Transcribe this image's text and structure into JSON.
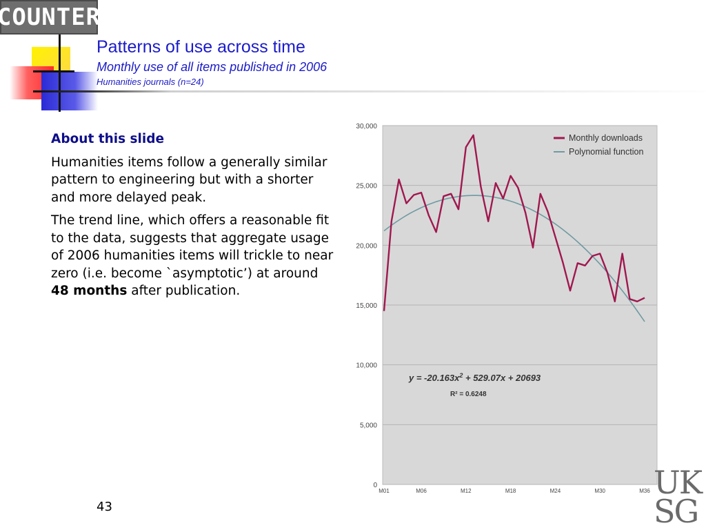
{
  "header": {
    "logo_text": "COUNTER",
    "title": "Patterns of use across time",
    "subtitle": "Monthly use of all items published in 2006",
    "subsubtitle": "Humanities journals (n=24)"
  },
  "about": {
    "heading": "About this slide",
    "para1": "Humanities items follow a generally similar pattern to engineering but with a shorter and more delayed peak.",
    "para2_before": "The trend line, which offers a reasonable fit to the data, suggests that aggregate usage of 2006 humanities items will trickle to near zero (i.e. become `asymptotic’) at around ",
    "para2_bold": "48 months",
    "para2_after": " after publication."
  },
  "footer": {
    "page_number": "43",
    "uksg_line1": "UK",
    "uksg_line2": "SG"
  },
  "chart_data": {
    "type": "line",
    "x": [
      1,
      2,
      3,
      4,
      5,
      6,
      7,
      8,
      9,
      10,
      11,
      12,
      13,
      14,
      15,
      16,
      17,
      18,
      19,
      20,
      21,
      22,
      23,
      24,
      25,
      26,
      27,
      28,
      29,
      30,
      31,
      32,
      33,
      34,
      35,
      36
    ],
    "x_tick_labels": [
      {
        "x": 1,
        "label": "M01"
      },
      {
        "x": 6,
        "label": "M06"
      },
      {
        "x": 12,
        "label": "M12"
      },
      {
        "x": 18,
        "label": "M18"
      },
      {
        "x": 24,
        "label": "M24"
      },
      {
        "x": 30,
        "label": "M30"
      },
      {
        "x": 36,
        "label": "M36"
      }
    ],
    "series": [
      {
        "name": "Monthly downloads",
        "color": "#a0174e",
        "values": [
          14500,
          22000,
          25500,
          23500,
          24200,
          24400,
          22500,
          21100,
          24100,
          24300,
          23000,
          28200,
          29200,
          24900,
          22000,
          25200,
          23900,
          25800,
          24800,
          22700,
          19800,
          24300,
          22800,
          20700,
          18600,
          16200,
          18500,
          18300,
          19100,
          19300,
          17700,
          15300,
          19300,
          15500,
          15300,
          15600
        ]
      },
      {
        "name": "Polynomial function",
        "color": "#6f9aa2"
      }
    ],
    "trendline": {
      "a": -20.163,
      "b": 529.07,
      "c": 20693
    },
    "equation_prefix": "y = -20.163x",
    "equation_exp": "2",
    "equation_suffix": " + 529.07x + 20693",
    "r_squared": "R² = 0.6248",
    "y_ticks": [
      "0",
      "5,000",
      "10,000",
      "15,000",
      "20,000",
      "25,000",
      "30,000"
    ],
    "ylim": [
      0,
      30000
    ],
    "xlim": [
      1,
      36
    ],
    "grid": true,
    "plot_background": "#d8d8d8",
    "legend_position": "top-right"
  }
}
